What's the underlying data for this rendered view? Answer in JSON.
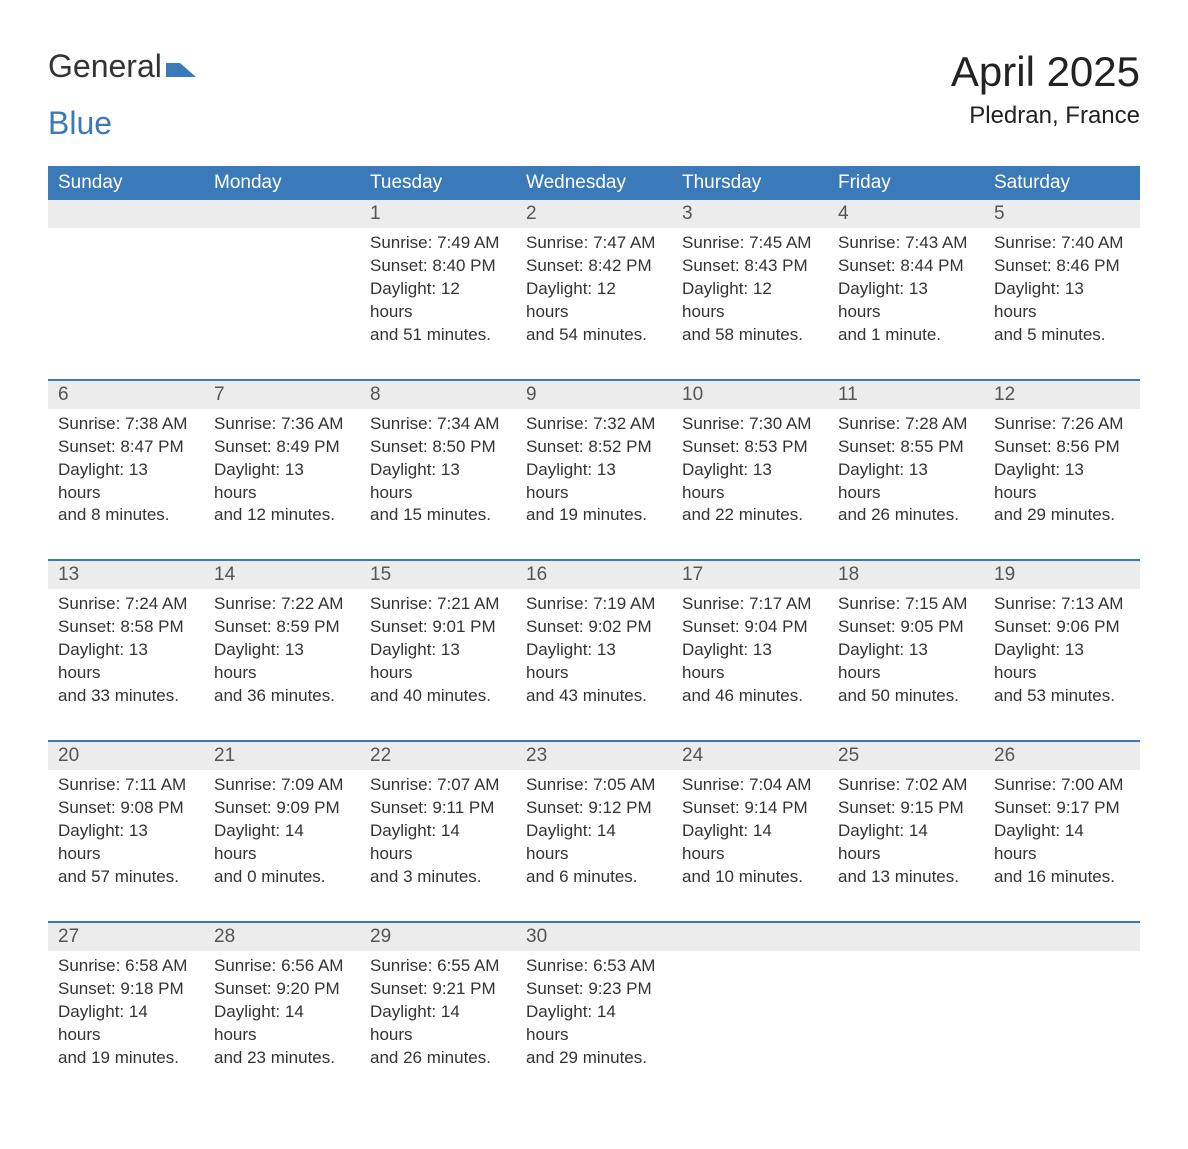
{
  "logo": {
    "text1": "General",
    "text2": "Blue"
  },
  "title": "April 2025",
  "location": "Pledran, France",
  "weekday_labels": [
    "Sunday",
    "Monday",
    "Tuesday",
    "Wednesday",
    "Thursday",
    "Friday",
    "Saturday"
  ],
  "colors": {
    "header_bg": "#3a7ab8",
    "header_text": "#ffffff",
    "daynum_bg": "#ececec",
    "daynum_text": "#555555",
    "rule": "#3a7ab8",
    "body_text": "#333333",
    "logo_accent": "#3a7ab8",
    "background": "#ffffff"
  },
  "typography": {
    "title_fontsize": 42,
    "location_fontsize": 24,
    "weekday_fontsize": 19,
    "daynum_fontsize": 19,
    "cell_fontsize": 17,
    "logo_fontsize": 32
  },
  "layout": {
    "columns": 7,
    "first_day_column_index": 2
  },
  "weeks": [
    {
      "first": true,
      "days": [
        {
          "num": "",
          "sunrise": "",
          "sunset": "",
          "daylight1": "",
          "daylight2": ""
        },
        {
          "num": "",
          "sunrise": "",
          "sunset": "",
          "daylight1": "",
          "daylight2": ""
        },
        {
          "num": "1",
          "sunrise": "Sunrise: 7:49 AM",
          "sunset": "Sunset: 8:40 PM",
          "daylight1": "Daylight: 12 hours",
          "daylight2": "and 51 minutes."
        },
        {
          "num": "2",
          "sunrise": "Sunrise: 7:47 AM",
          "sunset": "Sunset: 8:42 PM",
          "daylight1": "Daylight: 12 hours",
          "daylight2": "and 54 minutes."
        },
        {
          "num": "3",
          "sunrise": "Sunrise: 7:45 AM",
          "sunset": "Sunset: 8:43 PM",
          "daylight1": "Daylight: 12 hours",
          "daylight2": "and 58 minutes."
        },
        {
          "num": "4",
          "sunrise": "Sunrise: 7:43 AM",
          "sunset": "Sunset: 8:44 PM",
          "daylight1": "Daylight: 13 hours",
          "daylight2": "and 1 minute."
        },
        {
          "num": "5",
          "sunrise": "Sunrise: 7:40 AM",
          "sunset": "Sunset: 8:46 PM",
          "daylight1": "Daylight: 13 hours",
          "daylight2": "and 5 minutes."
        }
      ]
    },
    {
      "first": false,
      "days": [
        {
          "num": "6",
          "sunrise": "Sunrise: 7:38 AM",
          "sunset": "Sunset: 8:47 PM",
          "daylight1": "Daylight: 13 hours",
          "daylight2": "and 8 minutes."
        },
        {
          "num": "7",
          "sunrise": "Sunrise: 7:36 AM",
          "sunset": "Sunset: 8:49 PM",
          "daylight1": "Daylight: 13 hours",
          "daylight2": "and 12 minutes."
        },
        {
          "num": "8",
          "sunrise": "Sunrise: 7:34 AM",
          "sunset": "Sunset: 8:50 PM",
          "daylight1": "Daylight: 13 hours",
          "daylight2": "and 15 minutes."
        },
        {
          "num": "9",
          "sunrise": "Sunrise: 7:32 AM",
          "sunset": "Sunset: 8:52 PM",
          "daylight1": "Daylight: 13 hours",
          "daylight2": "and 19 minutes."
        },
        {
          "num": "10",
          "sunrise": "Sunrise: 7:30 AM",
          "sunset": "Sunset: 8:53 PM",
          "daylight1": "Daylight: 13 hours",
          "daylight2": "and 22 minutes."
        },
        {
          "num": "11",
          "sunrise": "Sunrise: 7:28 AM",
          "sunset": "Sunset: 8:55 PM",
          "daylight1": "Daylight: 13 hours",
          "daylight2": "and 26 minutes."
        },
        {
          "num": "12",
          "sunrise": "Sunrise: 7:26 AM",
          "sunset": "Sunset: 8:56 PM",
          "daylight1": "Daylight: 13 hours",
          "daylight2": "and 29 minutes."
        }
      ]
    },
    {
      "first": false,
      "days": [
        {
          "num": "13",
          "sunrise": "Sunrise: 7:24 AM",
          "sunset": "Sunset: 8:58 PM",
          "daylight1": "Daylight: 13 hours",
          "daylight2": "and 33 minutes."
        },
        {
          "num": "14",
          "sunrise": "Sunrise: 7:22 AM",
          "sunset": "Sunset: 8:59 PM",
          "daylight1": "Daylight: 13 hours",
          "daylight2": "and 36 minutes."
        },
        {
          "num": "15",
          "sunrise": "Sunrise: 7:21 AM",
          "sunset": "Sunset: 9:01 PM",
          "daylight1": "Daylight: 13 hours",
          "daylight2": "and 40 minutes."
        },
        {
          "num": "16",
          "sunrise": "Sunrise: 7:19 AM",
          "sunset": "Sunset: 9:02 PM",
          "daylight1": "Daylight: 13 hours",
          "daylight2": "and 43 minutes."
        },
        {
          "num": "17",
          "sunrise": "Sunrise: 7:17 AM",
          "sunset": "Sunset: 9:04 PM",
          "daylight1": "Daylight: 13 hours",
          "daylight2": "and 46 minutes."
        },
        {
          "num": "18",
          "sunrise": "Sunrise: 7:15 AM",
          "sunset": "Sunset: 9:05 PM",
          "daylight1": "Daylight: 13 hours",
          "daylight2": "and 50 minutes."
        },
        {
          "num": "19",
          "sunrise": "Sunrise: 7:13 AM",
          "sunset": "Sunset: 9:06 PM",
          "daylight1": "Daylight: 13 hours",
          "daylight2": "and 53 minutes."
        }
      ]
    },
    {
      "first": false,
      "days": [
        {
          "num": "20",
          "sunrise": "Sunrise: 7:11 AM",
          "sunset": "Sunset: 9:08 PM",
          "daylight1": "Daylight: 13 hours",
          "daylight2": "and 57 minutes."
        },
        {
          "num": "21",
          "sunrise": "Sunrise: 7:09 AM",
          "sunset": "Sunset: 9:09 PM",
          "daylight1": "Daylight: 14 hours",
          "daylight2": "and 0 minutes."
        },
        {
          "num": "22",
          "sunrise": "Sunrise: 7:07 AM",
          "sunset": "Sunset: 9:11 PM",
          "daylight1": "Daylight: 14 hours",
          "daylight2": "and 3 minutes."
        },
        {
          "num": "23",
          "sunrise": "Sunrise: 7:05 AM",
          "sunset": "Sunset: 9:12 PM",
          "daylight1": "Daylight: 14 hours",
          "daylight2": "and 6 minutes."
        },
        {
          "num": "24",
          "sunrise": "Sunrise: 7:04 AM",
          "sunset": "Sunset: 9:14 PM",
          "daylight1": "Daylight: 14 hours",
          "daylight2": "and 10 minutes."
        },
        {
          "num": "25",
          "sunrise": "Sunrise: 7:02 AM",
          "sunset": "Sunset: 9:15 PM",
          "daylight1": "Daylight: 14 hours",
          "daylight2": "and 13 minutes."
        },
        {
          "num": "26",
          "sunrise": "Sunrise: 7:00 AM",
          "sunset": "Sunset: 9:17 PM",
          "daylight1": "Daylight: 14 hours",
          "daylight2": "and 16 minutes."
        }
      ]
    },
    {
      "first": false,
      "days": [
        {
          "num": "27",
          "sunrise": "Sunrise: 6:58 AM",
          "sunset": "Sunset: 9:18 PM",
          "daylight1": "Daylight: 14 hours",
          "daylight2": "and 19 minutes."
        },
        {
          "num": "28",
          "sunrise": "Sunrise: 6:56 AM",
          "sunset": "Sunset: 9:20 PM",
          "daylight1": "Daylight: 14 hours",
          "daylight2": "and 23 minutes."
        },
        {
          "num": "29",
          "sunrise": "Sunrise: 6:55 AM",
          "sunset": "Sunset: 9:21 PM",
          "daylight1": "Daylight: 14 hours",
          "daylight2": "and 26 minutes."
        },
        {
          "num": "30",
          "sunrise": "Sunrise: 6:53 AM",
          "sunset": "Sunset: 9:23 PM",
          "daylight1": "Daylight: 14 hours",
          "daylight2": "and 29 minutes."
        },
        {
          "num": "",
          "sunrise": "",
          "sunset": "",
          "daylight1": "",
          "daylight2": ""
        },
        {
          "num": "",
          "sunrise": "",
          "sunset": "",
          "daylight1": "",
          "daylight2": ""
        },
        {
          "num": "",
          "sunrise": "",
          "sunset": "",
          "daylight1": "",
          "daylight2": ""
        }
      ]
    }
  ]
}
